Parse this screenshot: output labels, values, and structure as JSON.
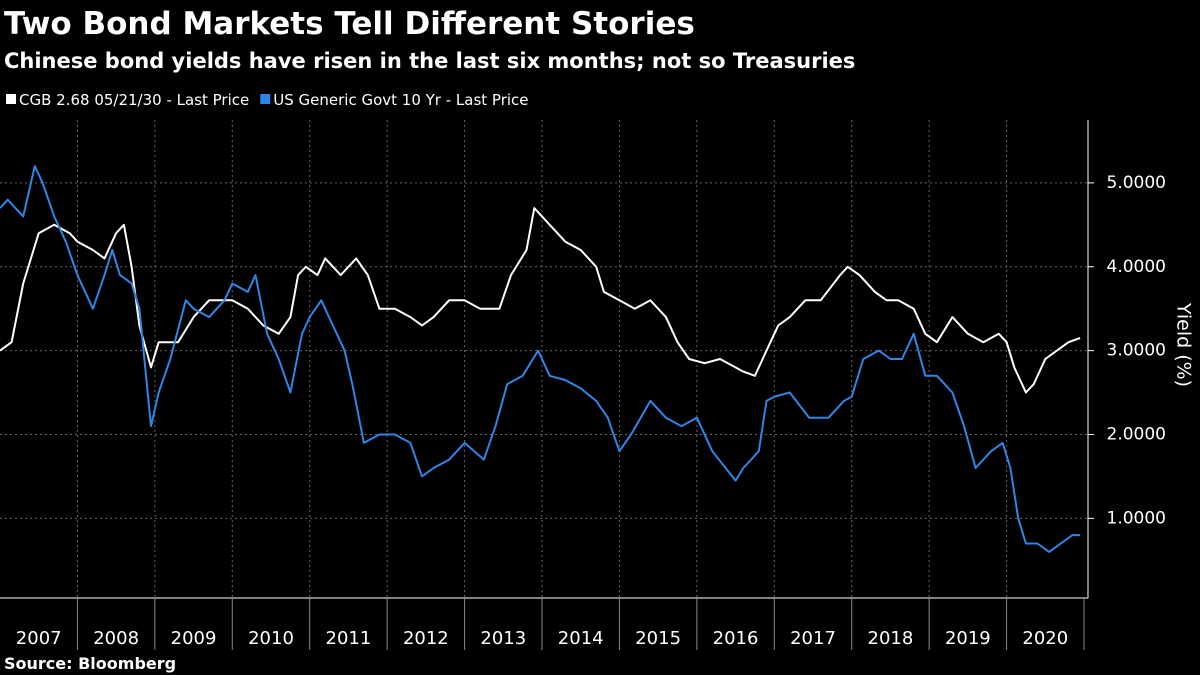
{
  "chart_data": {
    "type": "line",
    "title": "Two Bond Markets Tell Different Stories",
    "subtitle": "Chinese bond yields have risen in the last six months; not so Treasuries",
    "y_label": "Yield (%)",
    "source": "Source: Bloomberg",
    "categories": [
      "2007",
      "2008",
      "2009",
      "2010",
      "2011",
      "2012",
      "2013",
      "2014",
      "2015",
      "2016",
      "2017",
      "2018",
      "2019",
      "2020"
    ],
    "xlim": [
      2007,
      2021
    ],
    "ylim": [
      0.05,
      5.75
    ],
    "yticks": [
      {
        "value": 1,
        "label": "1.0000"
      },
      {
        "value": 2,
        "label": "2.0000"
      },
      {
        "value": 3,
        "label": "3.0000"
      },
      {
        "value": 4,
        "label": "4.0000"
      },
      {
        "value": 5,
        "label": "5.0000"
      }
    ],
    "grid": true,
    "series": [
      {
        "name": "CGB 2.68 05/21/30 - Last Price",
        "color": "#ffffff",
        "x": [
          2007.0,
          2007.15,
          2007.3,
          2007.5,
          2007.7,
          2007.9,
          2008.0,
          2008.2,
          2008.35,
          2008.5,
          2008.6,
          2008.7,
          2008.8,
          2008.95,
          2009.05,
          2009.3,
          2009.5,
          2009.7,
          2009.9,
          2010.0,
          2010.2,
          2010.4,
          2010.6,
          2010.75,
          2010.85,
          2010.95,
          2011.1,
          2011.2,
          2011.4,
          2011.6,
          2011.75,
          2011.9,
          2012.1,
          2012.3,
          2012.45,
          2012.6,
          2012.8,
          2013.0,
          2013.2,
          2013.45,
          2013.6,
          2013.8,
          2013.9,
          2014.1,
          2014.3,
          2014.5,
          2014.7,
          2014.8,
          2015.0,
          2015.2,
          2015.4,
          2015.6,
          2015.75,
          2015.9,
          2016.1,
          2016.3,
          2016.6,
          2016.75,
          2016.95,
          2017.05,
          2017.2,
          2017.4,
          2017.6,
          2017.85,
          2017.95,
          2018.1,
          2018.3,
          2018.45,
          2018.6,
          2018.8,
          2018.95,
          2019.1,
          2019.3,
          2019.5,
          2019.7,
          2019.9,
          2020.0,
          2020.1,
          2020.25,
          2020.35,
          2020.5,
          2020.65,
          2020.8,
          2020.95
        ],
        "values": [
          3.0,
          3.1,
          3.8,
          4.4,
          4.5,
          4.4,
          4.3,
          4.2,
          4.1,
          4.4,
          4.5,
          4.0,
          3.3,
          2.8,
          3.1,
          3.1,
          3.4,
          3.6,
          3.6,
          3.6,
          3.5,
          3.3,
          3.2,
          3.4,
          3.9,
          4.0,
          3.9,
          4.1,
          3.9,
          4.1,
          3.9,
          3.5,
          3.5,
          3.4,
          3.3,
          3.4,
          3.6,
          3.6,
          3.5,
          3.5,
          3.9,
          4.2,
          4.7,
          4.5,
          4.3,
          4.2,
          4.0,
          3.7,
          3.6,
          3.5,
          3.6,
          3.4,
          3.1,
          2.9,
          2.85,
          2.9,
          2.75,
          2.7,
          3.1,
          3.3,
          3.4,
          3.6,
          3.6,
          3.9,
          4.0,
          3.9,
          3.7,
          3.6,
          3.6,
          3.5,
          3.2,
          3.1,
          3.4,
          3.2,
          3.1,
          3.2,
          3.1,
          2.8,
          2.5,
          2.6,
          2.9,
          3.0,
          3.1,
          3.15
        ]
      },
      {
        "name": "US Generic Govt 10 Yr - Last Price",
        "color": "#2e86e6",
        "x": [
          2007.0,
          2007.1,
          2007.3,
          2007.45,
          2007.55,
          2007.7,
          2007.85,
          2008.0,
          2008.2,
          2008.35,
          2008.45,
          2008.55,
          2008.7,
          2008.8,
          2008.95,
          2009.05,
          2009.2,
          2009.4,
          2009.5,
          2009.7,
          2009.9,
          2010.0,
          2010.2,
          2010.3,
          2010.45,
          2010.6,
          2010.75,
          2010.9,
          2011.0,
          2011.15,
          2011.3,
          2011.45,
          2011.55,
          2011.7,
          2011.9,
          2012.1,
          2012.3,
          2012.45,
          2012.6,
          2012.8,
          2013.0,
          2013.25,
          2013.4,
          2013.55,
          2013.75,
          2013.95,
          2014.1,
          2014.3,
          2014.5,
          2014.7,
          2014.85,
          2015.0,
          2015.15,
          2015.4,
          2015.6,
          2015.8,
          2016.0,
          2016.2,
          2016.5,
          2016.6,
          2016.8,
          2016.9,
          2017.0,
          2017.2,
          2017.45,
          2017.7,
          2017.9,
          2018.0,
          2018.15,
          2018.35,
          2018.5,
          2018.65,
          2018.8,
          2018.95,
          2019.1,
          2019.3,
          2019.45,
          2019.6,
          2019.8,
          2019.95,
          2020.05,
          2020.15,
          2020.25,
          2020.4,
          2020.55,
          2020.7,
          2020.85,
          2020.95
        ],
        "values": [
          4.7,
          4.8,
          4.6,
          5.2,
          5.0,
          4.6,
          4.3,
          3.9,
          3.5,
          3.9,
          4.2,
          3.9,
          3.8,
          3.5,
          2.1,
          2.5,
          2.9,
          3.6,
          3.5,
          3.4,
          3.6,
          3.8,
          3.7,
          3.9,
          3.2,
          2.9,
          2.5,
          3.2,
          3.4,
          3.6,
          3.3,
          3.0,
          2.6,
          1.9,
          2.0,
          2.0,
          1.9,
          1.5,
          1.6,
          1.7,
          1.9,
          1.7,
          2.1,
          2.6,
          2.7,
          3.0,
          2.7,
          2.65,
          2.55,
          2.4,
          2.2,
          1.8,
          2.0,
          2.4,
          2.2,
          2.1,
          2.2,
          1.8,
          1.45,
          1.6,
          1.8,
          2.4,
          2.45,
          2.5,
          2.2,
          2.2,
          2.4,
          2.45,
          2.9,
          3.0,
          2.9,
          2.9,
          3.2,
          2.7,
          2.7,
          2.5,
          2.1,
          1.6,
          1.8,
          1.9,
          1.6,
          1.0,
          0.7,
          0.7,
          0.6,
          0.7,
          0.8,
          0.8
        ]
      }
    ]
  }
}
